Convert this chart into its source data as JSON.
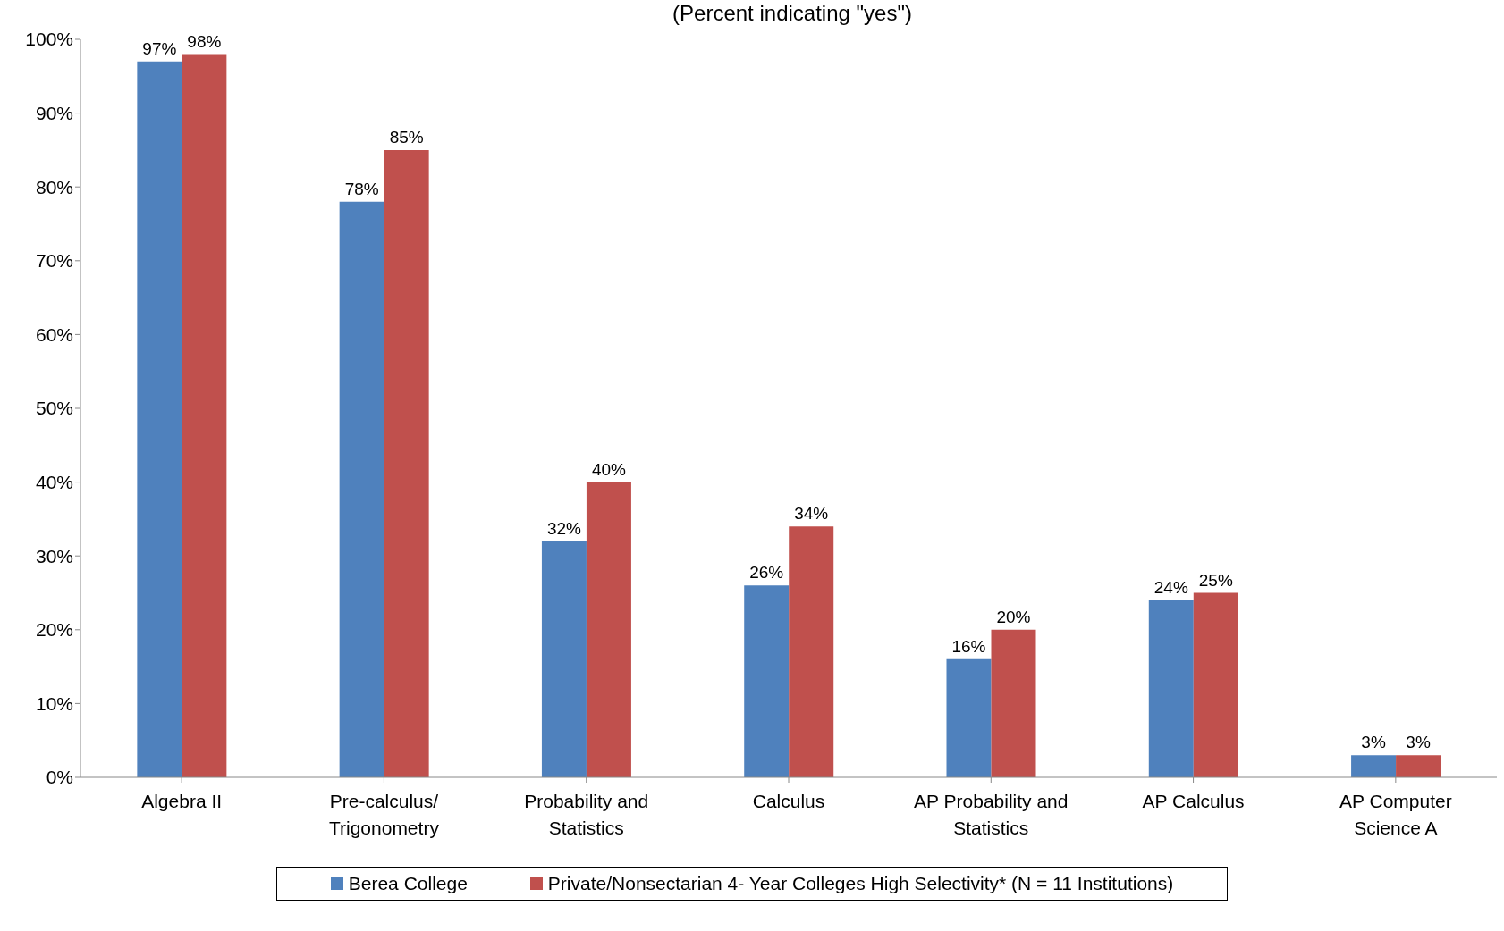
{
  "chart_data": {
    "type": "bar",
    "title": "(Percent indicating \"yes\")",
    "categories": [
      "Algebra II",
      "Pre-calculus/ Trigonometry",
      "Probability and Statistics",
      "Calculus",
      "AP Probability and Statistics",
      "AP Calculus",
      "AP Computer Science A"
    ],
    "series": [
      {
        "name": "Berea College",
        "color": "#4f81bd",
        "values": [
          97,
          78,
          32,
          26,
          16,
          24,
          3
        ],
        "value_labels": [
          "97%",
          "78%",
          "32%",
          "26%",
          "16%",
          "24%",
          "3%"
        ]
      },
      {
        "name": "Private/Nonsectarian 4- Year Colleges High Selectivity* (N = 11 Institutions)",
        "color": "#c0504d",
        "values": [
          98,
          85,
          40,
          34,
          20,
          25,
          3
        ],
        "value_labels": [
          "98%",
          "85%",
          "40%",
          "34%",
          "20%",
          "25%",
          "3%"
        ]
      }
    ],
    "ylim": [
      0,
      100
    ],
    "yticks": [
      {
        "value": 0,
        "label": "0%"
      },
      {
        "value": 10,
        "label": "10%"
      },
      {
        "value": 20,
        "label": "20%"
      },
      {
        "value": 30,
        "label": "30%"
      },
      {
        "value": 40,
        "label": "40%"
      },
      {
        "value": 50,
        "label": "50%"
      },
      {
        "value": 60,
        "label": "60%"
      },
      {
        "value": 70,
        "label": "70%"
      },
      {
        "value": 80,
        "label": "80%"
      },
      {
        "value": 90,
        "label": "90%"
      },
      {
        "value": 100,
        "label": "100%"
      }
    ],
    "grid": false,
    "legend": "bottom"
  }
}
